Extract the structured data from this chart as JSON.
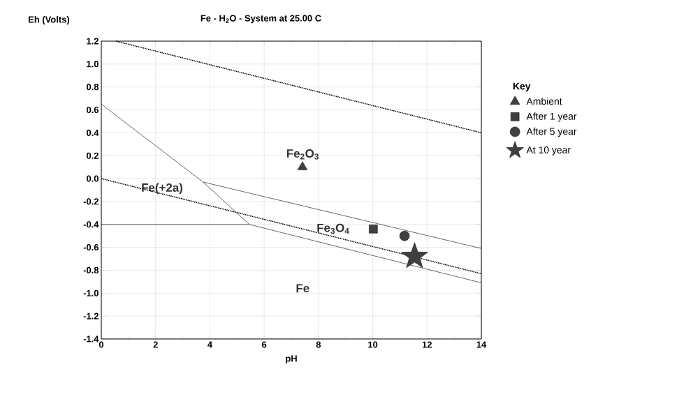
{
  "chart_data": {
    "type": "line",
    "title": "Fe - H$_{2}$O - System at 25.00 C",
    "xlabel": "pH",
    "ylabel": "Eh (Volts)",
    "legend_title": "Key",
    "xlim": [
      0,
      14
    ],
    "ylim": [
      -1.4,
      1.2
    ],
    "xticks": [
      0,
      2,
      4,
      6,
      8,
      10,
      12,
      14
    ],
    "yticks": [
      {
        "value": 1.2,
        "label": "1.2"
      },
      {
        "value": 1.0,
        "label": "1.0"
      },
      {
        "value": 0.8,
        "label": "0.8"
      },
      {
        "value": 0.6,
        "label": "0.6"
      },
      {
        "value": 0.4,
        "label": "0.4"
      },
      {
        "value": 0.2,
        "label": "0.2"
      },
      {
        "value": 0.0,
        "label": "0.0"
      },
      {
        "value": -0.2,
        "label": "-0.2"
      },
      {
        "value": -0.4,
        "label": "-0.4"
      },
      {
        "value": -0.6,
        "label": "-0.6"
      },
      {
        "value": -0.8,
        "label": "-0.8"
      },
      {
        "value": -1.0,
        "label": "-1.0"
      },
      {
        "value": -1.2,
        "label": "-1.2"
      },
      {
        "value": -1.4,
        "label": "-1.4"
      }
    ],
    "grid": true,
    "legend": "right",
    "series": [
      {
        "x": [
          0.54,
          14
        ],
        "values": [
          1.2,
          0.4
        ],
        "color": "#000000",
        "line_style": "dotted",
        "marker": "none"
      },
      {
        "x": [
          0,
          14
        ],
        "values": [
          0.0,
          -0.83
        ],
        "color": "#000000",
        "line_style": "dotted",
        "marker": "none"
      },
      {
        "x": [
          0,
          3.75,
          14,
          null,
          3.75,
          5.45,
          14,
          null,
          0,
          5.45
        ],
        "values": [
          0.65,
          -0.03,
          -0.61,
          null,
          -0.03,
          -0.4,
          -0.91,
          null,
          -0.4,
          -0.4
        ],
        "color": "#000000",
        "line_style": "solid",
        "marker": "none"
      },
      {
        "type": "scatter",
        "name": "Ambient",
        "x": [
          7.41
        ],
        "values": [
          0.1
        ],
        "color": "#404040",
        "marker": "triangle"
      },
      {
        "type": "scatter",
        "name": "After 1 year",
        "x": [
          10.02
        ],
        "values": [
          -0.44
        ],
        "color": "#404040",
        "marker": "square"
      },
      {
        "type": "scatter",
        "name": "After 5 year",
        "x": [
          11.17
        ],
        "values": [
          -0.5
        ],
        "color": "#404040",
        "marker": "circle"
      },
      {
        "type": "scatter",
        "name": "At 10 year",
        "x": [
          11.54
        ],
        "values": [
          -0.68
        ],
        "color": "#404040",
        "marker": "star"
      }
    ],
    "annotations": [
      "Fe$_{2}$O$_{3}$",
      "Fe(+2a)",
      "Fe$_{3}$O$_{4}$",
      "Fe"
    ]
  }
}
